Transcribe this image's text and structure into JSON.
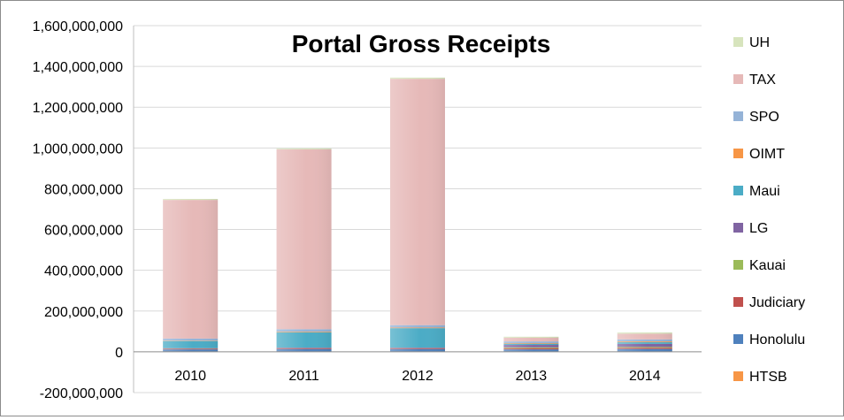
{
  "chart_data": {
    "type": "bar",
    "stacked": true,
    "title": "Portal Gross Receipts",
    "xlabel": "",
    "ylabel": "",
    "ylim": [
      -200000000,
      1600000000
    ],
    "ytick_step": 200000000,
    "yticks": [
      "-200,000,000",
      "0",
      "200,000,000",
      "400,000,000",
      "600,000,000",
      "800,000,000",
      "1,000,000,000",
      "1,200,000,000",
      "1,400,000,000",
      "1,600,000,000"
    ],
    "categories": [
      "2010",
      "2011",
      "2012",
      "2013",
      "2014"
    ],
    "grid": "horizontal",
    "legend_position": "right",
    "series": [
      {
        "name": "HTSB",
        "color": "#f79646",
        "values": [
          2000000,
          2000000,
          2000000,
          2000000,
          2000000
        ]
      },
      {
        "name": "Honolulu",
        "color": "#4f81bd",
        "values": [
          10000000,
          12000000,
          12000000,
          10000000,
          12000000
        ]
      },
      {
        "name": "Judiciary",
        "color": "#c0504d",
        "values": [
          3000000,
          3000000,
          3000000,
          6000000,
          6000000
        ]
      },
      {
        "name": "Kauai",
        "color": "#9bbb59",
        "values": [
          1000000,
          1000000,
          1000000,
          4000000,
          4000000
        ]
      },
      {
        "name": "LG",
        "color": "#8064a2",
        "values": [
          2000000,
          3000000,
          3000000,
          12000000,
          15000000
        ]
      },
      {
        "name": "Maui",
        "color": "#4bacc6",
        "values": [
          35000000,
          75000000,
          95000000,
          6000000,
          8000000
        ]
      },
      {
        "name": "OIMT",
        "color": "#f79646",
        "values": [
          2000000,
          3000000,
          3000000,
          3000000,
          4000000
        ]
      },
      {
        "name": "SPO",
        "color": "#95b3d7",
        "values": [
          10000000,
          12000000,
          12000000,
          8000000,
          10000000
        ]
      },
      {
        "name": "TAX",
        "color": "#e6b9b8",
        "values": [
          680000000,
          882000000,
          1208000000,
          18000000,
          28000000
        ]
      },
      {
        "name": "UH",
        "color": "#d7e4bd",
        "values": [
          5000000,
          5000000,
          6000000,
          5000000,
          6000000
        ]
      }
    ]
  }
}
